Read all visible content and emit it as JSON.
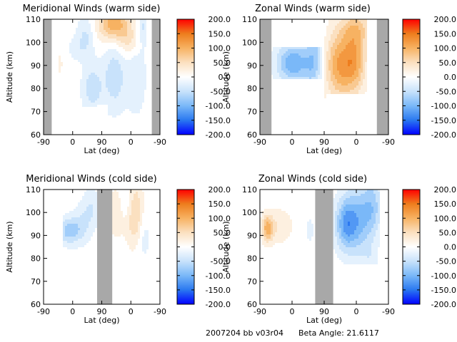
{
  "footer": {
    "run_id": "2007204 bb v03r04",
    "beta_label": "Beta Angle: 21.6117"
  },
  "colors": {
    "gap_fill": "#a8a8a8",
    "contour_line": "#000000",
    "scale": [
      "#0000ff",
      "#2a78f0",
      "#7ab8f8",
      "#c8e2fb",
      "#ffffff",
      "#fbe0c0",
      "#f7b262",
      "#ee7d1d",
      "#ff0000"
    ]
  },
  "chart_data": [
    {
      "type": "heatmap",
      "title": "Meridional Winds (warm side)",
      "xlabel": "Lat (deg)",
      "ylabel": "Altitude (km)",
      "x_tick_labels": [
        "-90",
        "0",
        "90",
        "0",
        "-90"
      ],
      "y_ticks": [
        60,
        70,
        80,
        90,
        100,
        110
      ],
      "ylim": [
        60,
        110
      ],
      "colorbar_ticks": [
        "200.0",
        "150.0",
        "100.0",
        "50.0",
        "0.0",
        "-50.0",
        "-100.0",
        "-150.0",
        "-200.0"
      ],
      "colorbar_range": [
        -200,
        200
      ],
      "no_data_bands": [
        [
          0.0,
          0.07
        ],
        [
          0.93,
          1.0
        ]
      ],
      "fields": [
        {
          "x": 0.42,
          "y": 80,
          "sx": 0.06,
          "sy": 7,
          "v": -55
        },
        {
          "x": 0.36,
          "y": 103,
          "sx": 0.05,
          "sy": 6,
          "v": -40
        },
        {
          "x": 0.29,
          "y": 97,
          "sx": 0.07,
          "sy": 4,
          "v": -20
        },
        {
          "x": 0.14,
          "y": 91,
          "sx": 0.02,
          "sy": 4,
          "v": 20
        },
        {
          "x": 0.6,
          "y": 108,
          "sx": 0.09,
          "sy": 5,
          "v": 110
        },
        {
          "x": 0.73,
          "y": 101,
          "sx": 0.06,
          "sy": 5,
          "v": 45
        },
        {
          "x": 0.61,
          "y": 85,
          "sx": 0.07,
          "sy": 10,
          "v": -55
        },
        {
          "x": 0.8,
          "y": 85,
          "sx": 0.06,
          "sy": 12,
          "v": -30
        },
        {
          "x": 0.86,
          "y": 107,
          "sx": 0.03,
          "sy": 5,
          "v": -40
        }
      ],
      "masks": [
        {
          "x0": 0.07,
          "x1": 0.46,
          "y0": 60,
          "y1": 72
        },
        {
          "x0": 0.07,
          "x1": 0.1,
          "y0": 60,
          "y1": 111
        },
        {
          "x0": 0.46,
          "x1": 0.55,
          "y0": 60,
          "y1": 73
        },
        {
          "x0": 0.88,
          "x1": 0.93,
          "y0": 60,
          "y1": 111
        }
      ]
    },
    {
      "type": "heatmap",
      "title": "Zonal Winds (warm side)",
      "xlabel": "Lat (deg)",
      "ylabel": "Altitude (km)",
      "x_tick_labels": [
        "-90",
        "0",
        "90",
        "0",
        "-90"
      ],
      "y_ticks": [
        60,
        70,
        80,
        90,
        100,
        110
      ],
      "ylim": [
        60,
        110
      ],
      "colorbar_ticks": [
        "200.0",
        "150.0",
        "100.0",
        "50.0",
        "0.0",
        "-50.0",
        "-100.0",
        "-150.0",
        "-200.0"
      ],
      "colorbar_range": [
        -200,
        200
      ],
      "no_data_bands": [
        [
          0.0,
          0.09
        ],
        [
          0.91,
          1.0
        ]
      ],
      "fields": [
        {
          "x": 0.26,
          "y": 91,
          "sx": 0.09,
          "sy": 6,
          "v": -110
        },
        {
          "x": 0.42,
          "y": 91,
          "sx": 0.05,
          "sy": 8,
          "v": -70
        },
        {
          "x": 0.43,
          "y": 106,
          "sx": 0.03,
          "sy": 5,
          "v": -90
        },
        {
          "x": 0.62,
          "y": 90,
          "sx": 0.08,
          "sy": 10,
          "v": 110
        },
        {
          "x": 0.74,
          "y": 92,
          "sx": 0.06,
          "sy": 9,
          "v": 90
        },
        {
          "x": 0.75,
          "y": 106,
          "sx": 0.09,
          "sy": 5,
          "v": 60
        }
      ],
      "masks": [
        {
          "x0": 0.09,
          "x1": 0.48,
          "y0": 60,
          "y1": 84
        },
        {
          "x0": 0.09,
          "x1": 0.48,
          "y0": 98,
          "y1": 111
        },
        {
          "x0": 0.52,
          "x1": 0.84,
          "y0": 60,
          "y1": 78
        },
        {
          "x0": 0.84,
          "x1": 0.91,
          "y0": 60,
          "y1": 111
        }
      ]
    },
    {
      "type": "heatmap",
      "title": "Meridional Winds (cold side)",
      "xlabel": "Lat (deg)",
      "ylabel": "Altitude (km)",
      "x_tick_labels": [
        "-90",
        "0",
        "90",
        "0",
        "-90"
      ],
      "y_ticks": [
        60,
        70,
        80,
        90,
        100,
        110
      ],
      "ylim": [
        60,
        110
      ],
      "colorbar_ticks": [
        "200.0",
        "150.0",
        "100.0",
        "50.0",
        "0.0",
        "-50.0",
        "-100.0",
        "-150.0",
        "-200.0"
      ],
      "colorbar_range": [
        -200,
        200
      ],
      "no_data_bands": [
        [
          0.46,
          0.59
        ]
      ],
      "fields": [
        {
          "x": 0.22,
          "y": 92,
          "sx": 0.07,
          "sy": 4,
          "v": -75
        },
        {
          "x": 0.33,
          "y": 95,
          "sx": 0.06,
          "sy": 6,
          "v": -30
        },
        {
          "x": 0.41,
          "y": 102,
          "sx": 0.05,
          "sy": 6,
          "v": -35
        },
        {
          "x": 0.63,
          "y": 100,
          "sx": 0.05,
          "sy": 8,
          "v": 30
        },
        {
          "x": 0.73,
          "y": 103,
          "sx": 0.05,
          "sy": 6,
          "v": -35
        },
        {
          "x": 0.78,
          "y": 100,
          "sx": 0.05,
          "sy": 9,
          "v": 80
        },
        {
          "x": 0.86,
          "y": 90,
          "sx": 0.04,
          "sy": 8,
          "v": -25
        }
      ],
      "masks": [
        {
          "x0": 0.0,
          "x1": 0.16,
          "y0": 60,
          "y1": 111
        },
        {
          "x0": 0.16,
          "x1": 0.46,
          "y0": 60,
          "y1": 83
        },
        {
          "x0": 0.59,
          "x1": 0.93,
          "y0": 60,
          "y1": 76
        },
        {
          "x0": 0.93,
          "x1": 1.0,
          "y0": 60,
          "y1": 111
        }
      ]
    },
    {
      "type": "heatmap",
      "title": "Zonal Winds (cold side)",
      "xlabel": "Lat (deg)",
      "ylabel": "Altitude (km)",
      "x_tick_labels": [
        "-90",
        "0",
        "90",
        "0",
        "-90"
      ],
      "y_ticks": [
        60,
        70,
        80,
        90,
        100,
        110
      ],
      "ylim": [
        60,
        110
      ],
      "colorbar_ticks": [
        "200.0",
        "150.0",
        "100.0",
        "50.0",
        "0.0",
        "-50.0",
        "-100.0",
        "-150.0",
        "-200.0"
      ],
      "colorbar_range": [
        -200,
        200
      ],
      "no_data_bands": [
        [
          0.43,
          0.57
        ]
      ],
      "fields": [
        {
          "x": 0.06,
          "y": 93,
          "sx": 0.03,
          "sy": 4,
          "v": 95
        },
        {
          "x": 0.15,
          "y": 94,
          "sx": 0.07,
          "sy": 5,
          "v": 35
        },
        {
          "x": 0.39,
          "y": 92,
          "sx": 0.02,
          "sy": 4,
          "v": -25
        },
        {
          "x": 0.67,
          "y": 95,
          "sx": 0.06,
          "sy": 8,
          "v": -110
        },
        {
          "x": 0.78,
          "y": 97,
          "sx": 0.07,
          "sy": 11,
          "v": -80
        },
        {
          "x": 0.88,
          "y": 103,
          "sx": 0.05,
          "sy": 9,
          "v": -60
        },
        {
          "x": 0.86,
          "y": 80,
          "sx": 0.04,
          "sy": 4,
          "v": -20
        }
      ],
      "masks": [
        {
          "x0": 0.0,
          "x1": 0.43,
          "y0": 60,
          "y1": 82
        },
        {
          "x0": 0.57,
          "x1": 0.93,
          "y0": 60,
          "y1": 77
        },
        {
          "x0": 0.93,
          "x1": 1.0,
          "y0": 60,
          "y1": 111
        }
      ]
    }
  ]
}
